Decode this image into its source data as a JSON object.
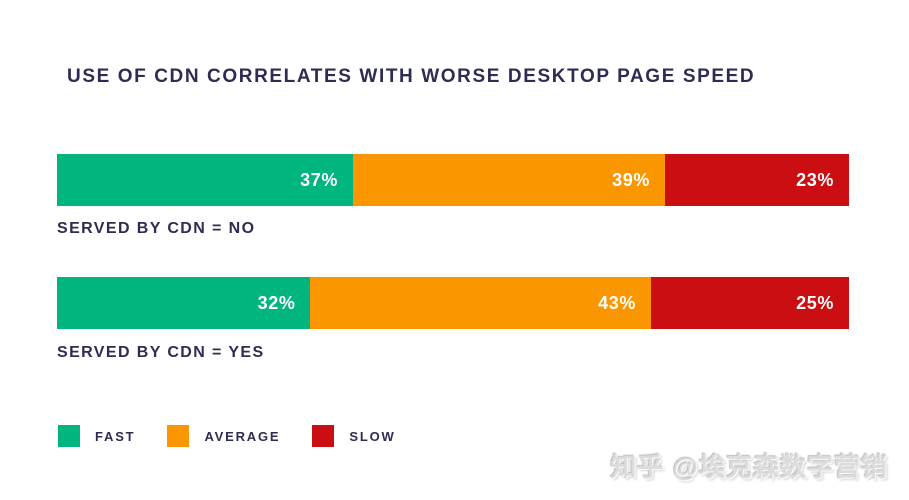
{
  "title": "USE OF CDN CORRELATES WITH WORSE DESKTOP PAGE SPEED",
  "chart_data": {
    "type": "bar",
    "orientation": "horizontal",
    "stacked": true,
    "title": "USE OF CDN CORRELATES WITH WORSE DESKTOP PAGE SPEED",
    "categories": [
      "SERVED BY CDN = NO",
      "SERVED BY CDN = YES"
    ],
    "series": [
      {
        "name": "FAST",
        "values": [
          37,
          32
        ],
        "color": "#00B57E"
      },
      {
        "name": "AVERAGE",
        "values": [
          39,
          43
        ],
        "color": "#FA9600"
      },
      {
        "name": "SLOW",
        "values": [
          23,
          25
        ],
        "color": "#CB0E12"
      }
    ],
    "units": "%",
    "value_labels": [
      [
        "37%",
        "39%",
        "23%"
      ],
      [
        "32%",
        "43%",
        "25%"
      ]
    ],
    "legend_position": "bottom-left",
    "grid": false,
    "axes": false
  },
  "bars": [
    {
      "label": "SERVED BY CDN = NO",
      "segments": [
        {
          "name": "fast",
          "label": "37%",
          "value": 37,
          "color": "#00B57E"
        },
        {
          "name": "average",
          "label": "39%",
          "value": 39,
          "color": "#FA9600"
        },
        {
          "name": "slow",
          "label": "23%",
          "value": 23,
          "color": "#CB0E12"
        }
      ]
    },
    {
      "label": "SERVED BY CDN = YES",
      "segments": [
        {
          "name": "fast",
          "label": "32%",
          "value": 32,
          "color": "#00B57E"
        },
        {
          "name": "average",
          "label": "43%",
          "value": 43,
          "color": "#FA9600"
        },
        {
          "name": "slow",
          "label": "25%",
          "value": 25,
          "color": "#CB0E12"
        }
      ]
    }
  ],
  "legend": [
    {
      "label": "FAST",
      "color": "#00B57E"
    },
    {
      "label": "AVERAGE",
      "color": "#FA9600"
    },
    {
      "label": "SLOW",
      "color": "#CB0E12"
    }
  ],
  "watermark": "知乎 @埃克森数字营销",
  "colors": {
    "fast": "#00B57E",
    "average": "#FA9600",
    "slow": "#CB0E12",
    "text": "#2E2C52",
    "background": "#FFFFFF",
    "watermark": "#DCDCDC",
    "value_text": "#FFFFFF"
  }
}
